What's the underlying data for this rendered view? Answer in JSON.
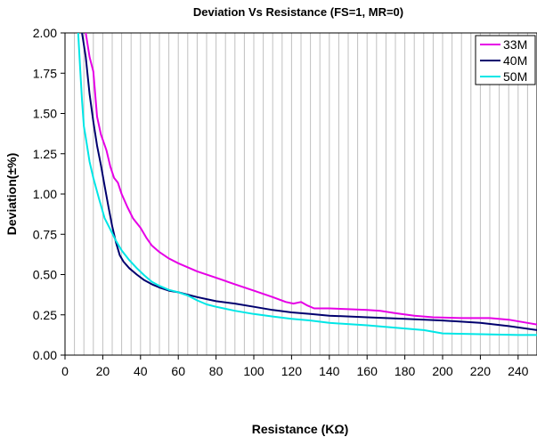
{
  "chart_data": {
    "type": "line",
    "title": "Deviation Vs Resistance (FS=1, MR=0)",
    "xlabel": "Resistance (KΩ)",
    "ylabel": "Deviation(±%)",
    "xlim": [
      0,
      250
    ],
    "ylim": [
      0,
      2.0
    ],
    "x_ticks": [
      "0",
      "20",
      "40",
      "60",
      "80",
      "100",
      "120",
      "140",
      "160",
      "180",
      "200",
      "220",
      "240"
    ],
    "y_ticks": [
      "0.00",
      "0.25",
      "0.50",
      "0.75",
      "1.00",
      "1.25",
      "1.50",
      "1.75",
      "2.00"
    ],
    "grid": "vertical lines every 5 KΩ",
    "legend_position": "top-right",
    "series": [
      {
        "name": "33M",
        "color": "#e600e6",
        "points": [
          [
            11,
            2.0
          ],
          [
            13,
            1.85
          ],
          [
            15,
            1.76
          ],
          [
            17,
            1.48
          ],
          [
            19,
            1.37
          ],
          [
            22,
            1.27
          ],
          [
            24,
            1.17
          ],
          [
            26,
            1.1
          ],
          [
            28,
            1.07
          ],
          [
            30,
            1.0
          ],
          [
            33,
            0.92
          ],
          [
            36,
            0.85
          ],
          [
            40,
            0.79
          ],
          [
            43,
            0.73
          ],
          [
            46,
            0.68
          ],
          [
            50,
            0.64
          ],
          [
            55,
            0.6
          ],
          [
            60,
            0.57
          ],
          [
            70,
            0.52
          ],
          [
            80,
            0.48
          ],
          [
            90,
            0.44
          ],
          [
            100,
            0.4
          ],
          [
            110,
            0.36
          ],
          [
            117,
            0.33
          ],
          [
            121,
            0.32
          ],
          [
            125,
            0.33
          ],
          [
            128,
            0.31
          ],
          [
            132,
            0.29
          ],
          [
            140,
            0.29
          ],
          [
            150,
            0.285
          ],
          [
            160,
            0.28
          ],
          [
            167,
            0.275
          ],
          [
            175,
            0.26
          ],
          [
            185,
            0.245
          ],
          [
            195,
            0.235
          ],
          [
            210,
            0.23
          ],
          [
            225,
            0.23
          ],
          [
            235,
            0.22
          ],
          [
            245,
            0.2
          ],
          [
            250,
            0.19
          ]
        ]
      },
      {
        "name": "40M",
        "color": "#00006e",
        "points": [
          [
            9,
            2.0
          ],
          [
            11,
            1.85
          ],
          [
            13,
            1.62
          ],
          [
            15,
            1.45
          ],
          [
            17,
            1.3
          ],
          [
            19,
            1.18
          ],
          [
            21,
            1.05
          ],
          [
            23,
            0.92
          ],
          [
            25,
            0.8
          ],
          [
            27,
            0.7
          ],
          [
            29,
            0.62
          ],
          [
            31,
            0.58
          ],
          [
            34,
            0.54
          ],
          [
            38,
            0.5
          ],
          [
            42,
            0.465
          ],
          [
            46,
            0.44
          ],
          [
            50,
            0.42
          ],
          [
            55,
            0.4
          ],
          [
            60,
            0.39
          ],
          [
            70,
            0.36
          ],
          [
            80,
            0.335
          ],
          [
            90,
            0.32
          ],
          [
            100,
            0.3
          ],
          [
            110,
            0.28
          ],
          [
            120,
            0.265
          ],
          [
            130,
            0.255
          ],
          [
            140,
            0.245
          ],
          [
            160,
            0.235
          ],
          [
            180,
            0.225
          ],
          [
            200,
            0.215
          ],
          [
            220,
            0.2
          ],
          [
            235,
            0.18
          ],
          [
            250,
            0.155
          ]
        ]
      },
      {
        "name": "50M",
        "color": "#00e6e6",
        "points": [
          [
            7,
            2.0
          ],
          [
            8,
            1.78
          ],
          [
            9,
            1.58
          ],
          [
            10,
            1.42
          ],
          [
            11,
            1.35
          ],
          [
            13,
            1.2
          ],
          [
            15,
            1.1
          ],
          [
            18,
            0.97
          ],
          [
            21,
            0.85
          ],
          [
            24,
            0.78
          ],
          [
            27,
            0.71
          ],
          [
            30,
            0.65
          ],
          [
            34,
            0.59
          ],
          [
            38,
            0.54
          ],
          [
            42,
            0.495
          ],
          [
            46,
            0.455
          ],
          [
            50,
            0.43
          ],
          [
            55,
            0.405
          ],
          [
            60,
            0.39
          ],
          [
            65,
            0.37
          ],
          [
            70,
            0.34
          ],
          [
            75,
            0.315
          ],
          [
            80,
            0.3
          ],
          [
            90,
            0.275
          ],
          [
            100,
            0.255
          ],
          [
            110,
            0.24
          ],
          [
            120,
            0.225
          ],
          [
            130,
            0.215
          ],
          [
            140,
            0.2
          ],
          [
            160,
            0.185
          ],
          [
            180,
            0.165
          ],
          [
            190,
            0.155
          ],
          [
            200,
            0.135
          ],
          [
            220,
            0.13
          ],
          [
            240,
            0.125
          ],
          [
            250,
            0.125
          ]
        ]
      }
    ]
  }
}
